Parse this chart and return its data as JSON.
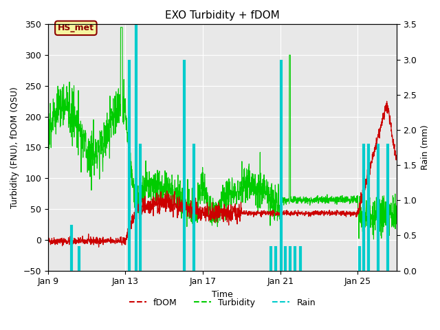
{
  "title": "EXO Turbidity + fDOM",
  "xlabel": "Time",
  "ylabel_left": "Turbidity (FNU), fDOM (QSU)",
  "ylabel_right": "Rain (mm)",
  "ylim_left": [
    -50,
    350
  ],
  "ylim_right": [
    0,
    3.5
  ],
  "yticks_left": [
    -50,
    0,
    50,
    100,
    150,
    200,
    250,
    300,
    350
  ],
  "yticks_right": [
    0.0,
    0.5,
    1.0,
    1.5,
    2.0,
    2.5,
    3.0,
    3.5
  ],
  "xtick_labels": [
    "Jan 9",
    "Jan 13",
    "Jan 17",
    "Jan 21",
    "Jan 25"
  ],
  "xtick_positions": [
    0,
    4,
    8,
    12,
    16
  ],
  "total_days": 18,
  "annotation_text": "HS_met",
  "bg_color": "#e8e8e8",
  "fdom_color": "#cc0000",
  "turbidity_color": "#00cc00",
  "rain_color": "#00cccc",
  "rain_times": [
    1.2,
    1.6,
    4.2,
    4.55,
    4.75,
    7.05,
    7.55,
    11.5,
    11.75,
    12.05,
    12.25,
    12.5,
    12.75,
    13.05,
    16.1,
    16.3,
    16.55,
    17.05,
    17.55
  ],
  "rain_heights": [
    0.65,
    0.35,
    3.0,
    3.5,
    1.8,
    3.0,
    1.8,
    0.35,
    0.35,
    3.0,
    0.35,
    0.35,
    0.35,
    0.35,
    0.35,
    1.8,
    1.8,
    1.8,
    1.8
  ]
}
